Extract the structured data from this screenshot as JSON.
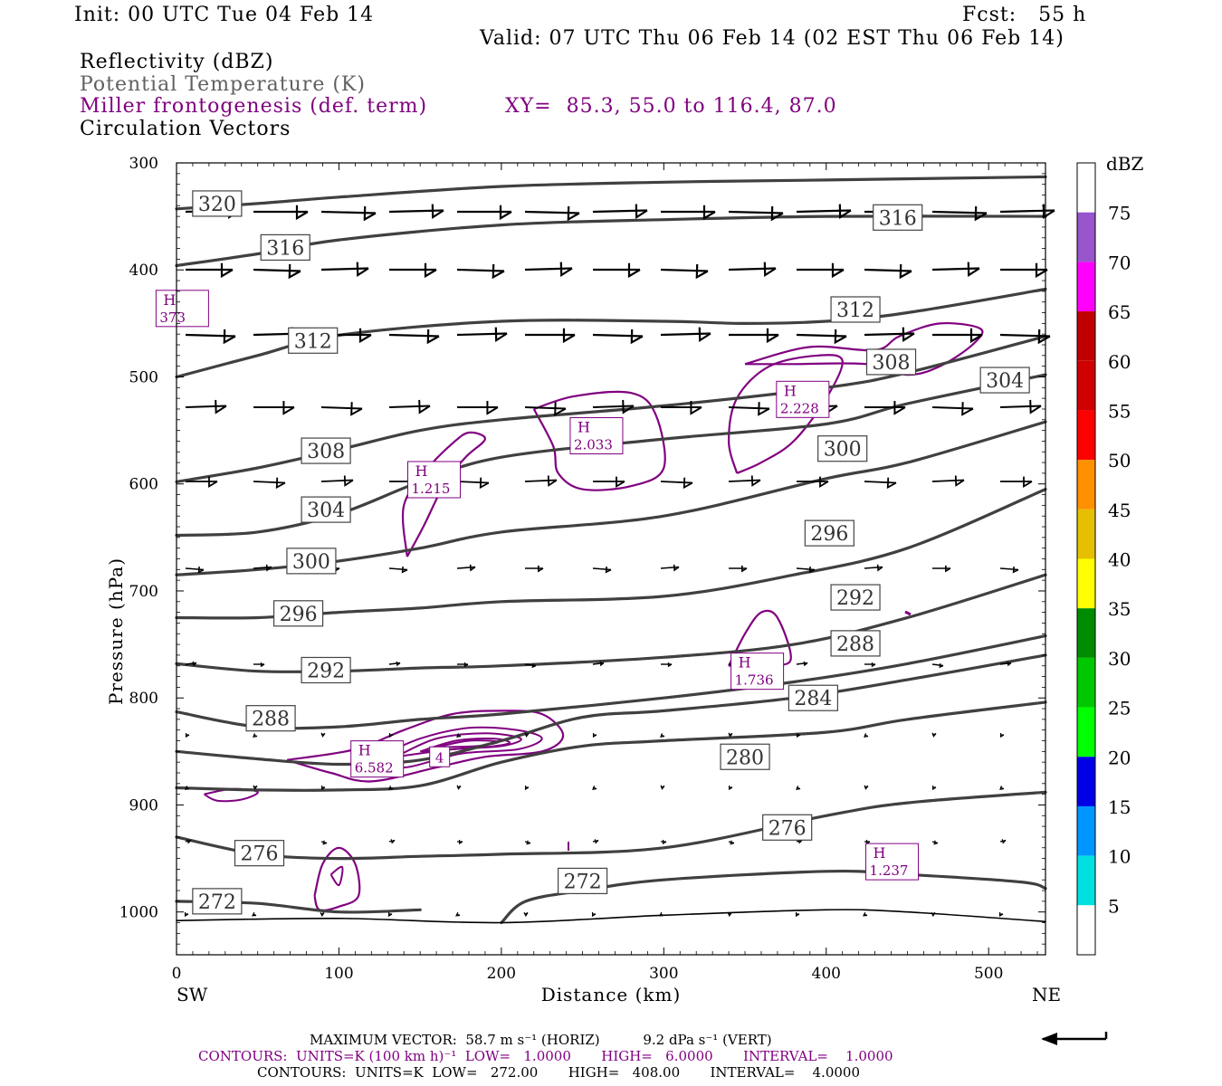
{
  "header": {
    "init": "Init: 00 UTC Tue 04 Feb 14",
    "fcst": "Fcst:   55 h",
    "valid": "Valid: 07 UTC Thu 06 Feb 14 (02 EST Thu 06 Feb 14)"
  },
  "fields": {
    "reflectivity": "Reflectivity (dBZ)",
    "theta": "Potential Temperature (K)",
    "frontogenesis": "Miller frontogenesis (def. term)",
    "xy": "XY=  85.3, 55.0 to 116.4, 87.0",
    "vectors": "Circulation Vectors"
  },
  "colors": {
    "theta_contour": "#404040",
    "frontogenesis": "#800080",
    "vectors": "#000000"
  },
  "chart_data": {
    "type": "line",
    "xlabel": "Distance (km)",
    "ylabel": "Pressure (hPa)",
    "xlim": [
      0,
      535
    ],
    "ylim": [
      1040,
      300
    ],
    "x_ticks": [
      0,
      100,
      200,
      300,
      400,
      500
    ],
    "y_ticks": [
      300,
      400,
      500,
      600,
      700,
      800,
      900,
      1000
    ],
    "x_end_labels": {
      "left": "SW",
      "right": "NE"
    },
    "colorbar": {
      "label": "dBZ",
      "levels": [
        5,
        10,
        15,
        20,
        25,
        30,
        35,
        40,
        45,
        50,
        55,
        60,
        65,
        70,
        75
      ],
      "colors": [
        "#ffffff",
        "#00e0e0",
        "#0096ff",
        "#0000e6",
        "#00ff00",
        "#00c800",
        "#008c00",
        "#ffff00",
        "#e6c000",
        "#ff9000",
        "#ff0000",
        "#d00000",
        "#c00000",
        "#ff00ff",
        "#9955cc",
        "#ffffff"
      ]
    },
    "series": [
      {
        "name": "320",
        "points": [
          [
            0,
            343
          ],
          [
            50,
            338
          ],
          [
            100,
            332
          ],
          [
            200,
            322
          ],
          [
            300,
            318
          ],
          [
            400,
            316
          ],
          [
            535,
            313
          ]
        ]
      },
      {
        "name": "316",
        "points": [
          [
            0,
            396
          ],
          [
            50,
            385
          ],
          [
            100,
            372
          ],
          [
            200,
            358
          ],
          [
            300,
            353
          ],
          [
            400,
            350
          ],
          [
            535,
            350
          ]
        ]
      },
      {
        "name": "312",
        "points": [
          [
            0,
            500
          ],
          [
            50,
            480
          ],
          [
            100,
            461
          ],
          [
            200,
            448
          ],
          [
            300,
            448
          ],
          [
            350,
            450
          ],
          [
            400,
            448
          ],
          [
            450,
            440
          ],
          [
            535,
            418
          ]
        ]
      },
      {
        "name": "308",
        "points": [
          [
            0,
            598
          ],
          [
            50,
            585
          ],
          [
            100,
            568
          ],
          [
            150,
            550
          ],
          [
            200,
            540
          ],
          [
            300,
            527
          ],
          [
            400,
            510
          ],
          [
            450,
            496
          ],
          [
            535,
            462
          ]
        ]
      },
      {
        "name": "304",
        "points": [
          [
            0,
            648
          ],
          [
            50,
            645
          ],
          [
            100,
            628
          ],
          [
            150,
            598
          ],
          [
            200,
            575
          ],
          [
            300,
            558
          ],
          [
            400,
            544
          ],
          [
            450,
            525
          ],
          [
            535,
            498
          ]
        ]
      },
      {
        "name": "300",
        "points": [
          [
            0,
            685
          ],
          [
            50,
            680
          ],
          [
            100,
            672
          ],
          [
            150,
            660
          ],
          [
            200,
            645
          ],
          [
            300,
            630
          ],
          [
            400,
            595
          ],
          [
            450,
            580
          ],
          [
            535,
            542
          ]
        ]
      },
      {
        "name": "296",
        "points": [
          [
            0,
            725
          ],
          [
            50,
            725
          ],
          [
            100,
            720
          ],
          [
            150,
            716
          ],
          [
            200,
            710
          ],
          [
            300,
            705
          ],
          [
            380,
            685
          ],
          [
            450,
            660
          ],
          [
            535,
            605
          ]
        ]
      },
      {
        "name": "292",
        "points": [
          [
            0,
            768
          ],
          [
            50,
            775
          ],
          [
            100,
            775
          ],
          [
            150,
            772
          ],
          [
            200,
            770
          ],
          [
            300,
            762
          ],
          [
            380,
            750
          ],
          [
            450,
            725
          ],
          [
            535,
            685
          ]
        ]
      },
      {
        "name": "288",
        "points": [
          [
            0,
            813
          ],
          [
            50,
            827
          ],
          [
            100,
            827
          ],
          [
            150,
            820
          ],
          [
            200,
            815
          ],
          [
            300,
            800
          ],
          [
            380,
            785
          ],
          [
            450,
            768
          ],
          [
            535,
            742
          ]
        ]
      },
      {
        "name": "284",
        "points": [
          [
            0,
            850
          ],
          [
            50,
            857
          ],
          [
            100,
            862
          ],
          [
            150,
            858
          ],
          [
            200,
            840
          ],
          [
            250,
            818
          ],
          [
            300,
            812
          ],
          [
            380,
            800
          ],
          [
            450,
            783
          ],
          [
            535,
            760
          ]
        ]
      },
      {
        "name": "280",
        "points": [
          [
            0,
            884
          ],
          [
            50,
            886
          ],
          [
            100,
            886
          ],
          [
            150,
            882
          ],
          [
            200,
            860
          ],
          [
            250,
            845
          ],
          [
            300,
            840
          ],
          [
            400,
            832
          ],
          [
            450,
            820
          ],
          [
            535,
            804
          ]
        ]
      },
      {
        "name": "276",
        "points": [
          [
            0,
            930
          ],
          [
            50,
            946
          ],
          [
            100,
            950
          ],
          [
            150,
            948
          ],
          [
            200,
            946
          ],
          [
            300,
            940
          ],
          [
            400,
            910
          ],
          [
            450,
            898
          ],
          [
            535,
            888
          ]
        ]
      },
      {
        "name": "272",
        "points": [
          [
            0,
            990
          ],
          [
            50,
            992
          ],
          [
            100,
            1000
          ],
          [
            150,
            998
          ]
        ]
      },
      {
        "name": "272b",
        "points": [
          [
            200,
            1010
          ],
          [
            215,
            990
          ],
          [
            250,
            980
          ],
          [
            300,
            970
          ],
          [
            400,
            962
          ],
          [
            450,
            965
          ],
          [
            520,
            972
          ],
          [
            535,
            978
          ]
        ]
      },
      {
        "name": "",
        "points": [
          [
            0,
            1008
          ],
          [
            100,
            1006
          ],
          [
            200,
            1010
          ],
          [
            300,
            1003
          ],
          [
            400,
            998
          ],
          [
            450,
            1000
          ],
          [
            535,
            1009
          ]
        ]
      }
    ],
    "theta_labels": [
      {
        "text": "320",
        "x": 25,
        "p": 338
      },
      {
        "text": "316",
        "x": 67,
        "p": 379
      },
      {
        "text": "316",
        "x": 444,
        "p": 351
      },
      {
        "text": "312",
        "x": 84,
        "p": 466
      },
      {
        "text": "312",
        "x": 418,
        "p": 437
      },
      {
        "text": "308",
        "x": 92,
        "p": 569
      },
      {
        "text": "308",
        "x": 440,
        "p": 486
      },
      {
        "text": "304",
        "x": 92,
        "p": 624
      },
      {
        "text": "304",
        "x": 510,
        "p": 503
      },
      {
        "text": "300",
        "x": 83,
        "p": 672
      },
      {
        "text": "300",
        "x": 410,
        "p": 567
      },
      {
        "text": "296",
        "x": 75,
        "p": 721
      },
      {
        "text": "296",
        "x": 402,
        "p": 646
      },
      {
        "text": "292",
        "x": 92,
        "p": 774
      },
      {
        "text": "292",
        "x": 418,
        "p": 706
      },
      {
        "text": "288",
        "x": 58,
        "p": 819
      },
      {
        "text": "288",
        "x": 418,
        "p": 749
      },
      {
        "text": "284",
        "x": 392,
        "p": 800
      },
      {
        "text": "280",
        "x": 350,
        "p": 855
      },
      {
        "text": "276",
        "x": 51,
        "p": 945
      },
      {
        "text": "276",
        "x": 376,
        "p": 921
      },
      {
        "text": "272",
        "x": 25,
        "p": 990
      },
      {
        "text": "272",
        "x": 250,
        "p": 971
      }
    ],
    "highs": [
      {
        "text": "H",
        "value": "373",
        "x": 3,
        "p": 436
      },
      {
        "text": "H",
        "value": "1.215",
        "x": 158,
        "p": 596
      },
      {
        "text": "H",
        "value": "2.033",
        "x": 258,
        "p": 555
      },
      {
        "text": "H",
        "value": "2.228",
        "x": 385,
        "p": 521
      },
      {
        "text": "H",
        "value": "1.736",
        "x": 357,
        "p": 775
      },
      {
        "text": "H",
        "value": "6.582",
        "x": 123,
        "p": 857
      },
      {
        "text": "4",
        "value": "",
        "x": 162,
        "p": 855
      },
      {
        "text": "H",
        "value": "1.237",
        "x": 440,
        "p": 953
      }
    ]
  },
  "footer": {
    "max_vector": "MAXIMUM VECTOR:  58.7 m s⁻¹ (HORIZ)          9.2 dPa s⁻¹ (VERT)",
    "fronto_contours": "CONTOURS:  UNITS=K (100 km h)⁻¹  LOW=   1.0000       HIGH=   6.0000       INTERVAL=    1.0000",
    "theta_contours": "CONTOURS:  UNITS=K  LOW=   272.00       HIGH=   408.00       INTERVAL=    4.0000"
  }
}
